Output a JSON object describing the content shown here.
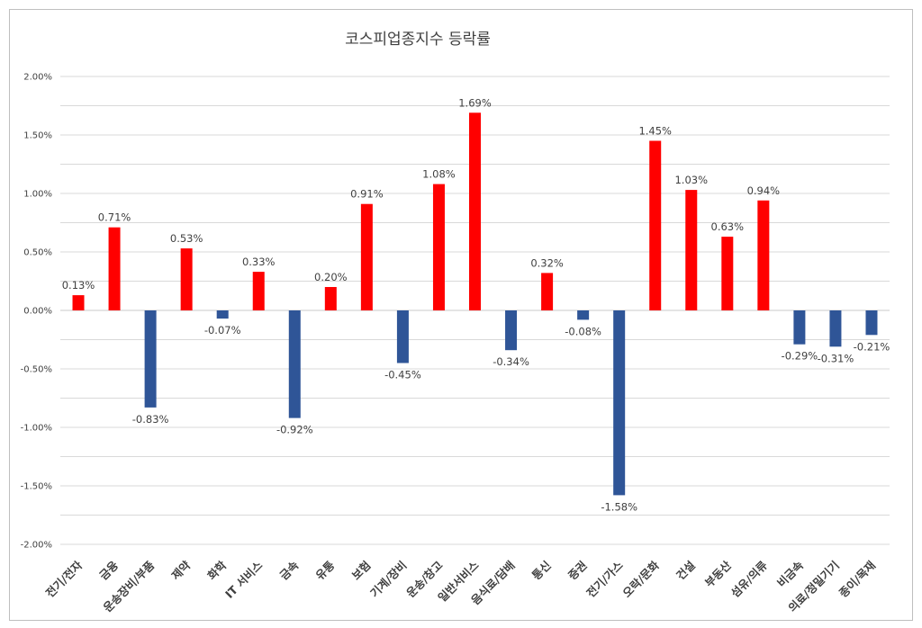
{
  "chart_data": {
    "type": "bar",
    "title": "코스피업종지수 등락률",
    "xlabel": "",
    "ylabel": "",
    "ylim": [
      -0.02,
      0.02
    ],
    "yticks": [
      0.02,
      0.015,
      0.01,
      0.005,
      0.0,
      -0.005,
      -0.01,
      -0.015,
      -0.02
    ],
    "ytick_labels": [
      "2.00%",
      "1.50%",
      "1.00%",
      "0.50%",
      "0.00%",
      "-0.50%",
      "-1.00%",
      "-1.50%",
      "-2.00%"
    ],
    "grid": true,
    "categories": [
      "전기/전자",
      "금융",
      "운송장비/부품",
      "제약",
      "화학",
      "IT 서비스",
      "금속",
      "유통",
      "보험",
      "기계/장비",
      "운송/창고",
      "일반서비스",
      "음식료/담배",
      "통신",
      "증권",
      "전기/가스",
      "오락/문화",
      "건설",
      "부동산",
      "섬유/의류",
      "비금속",
      "의료/정밀기기",
      "종이/목재"
    ],
    "values": [
      0.0013,
      0.0071,
      -0.0083,
      0.0053,
      -0.0007,
      0.0033,
      -0.0092,
      0.002,
      0.0091,
      -0.0045,
      0.0108,
      0.0169,
      -0.0034,
      0.0032,
      -0.0008,
      -0.0158,
      0.0145,
      0.0103,
      0.0063,
      0.0094,
      -0.0029,
      -0.0031,
      -0.0021
    ],
    "data_labels": [
      "0.13%",
      "0.71%",
      "-0.83%",
      "0.53%",
      "-0.07%",
      "0.33%",
      "-0.92%",
      "0.20%",
      "0.91%",
      "-0.45%",
      "1.08%",
      "1.69%",
      "-0.34%",
      "0.32%",
      "-0.08%",
      "-1.58%",
      "1.45%",
      "1.03%",
      "0.63%",
      "0.94%",
      "-0.29%",
      "-0.31%",
      "-0.21%"
    ],
    "colors": {
      "positive": "#ff0000",
      "negative": "#2f5597",
      "grid": "#d9d9d9",
      "text": "#404040"
    }
  }
}
